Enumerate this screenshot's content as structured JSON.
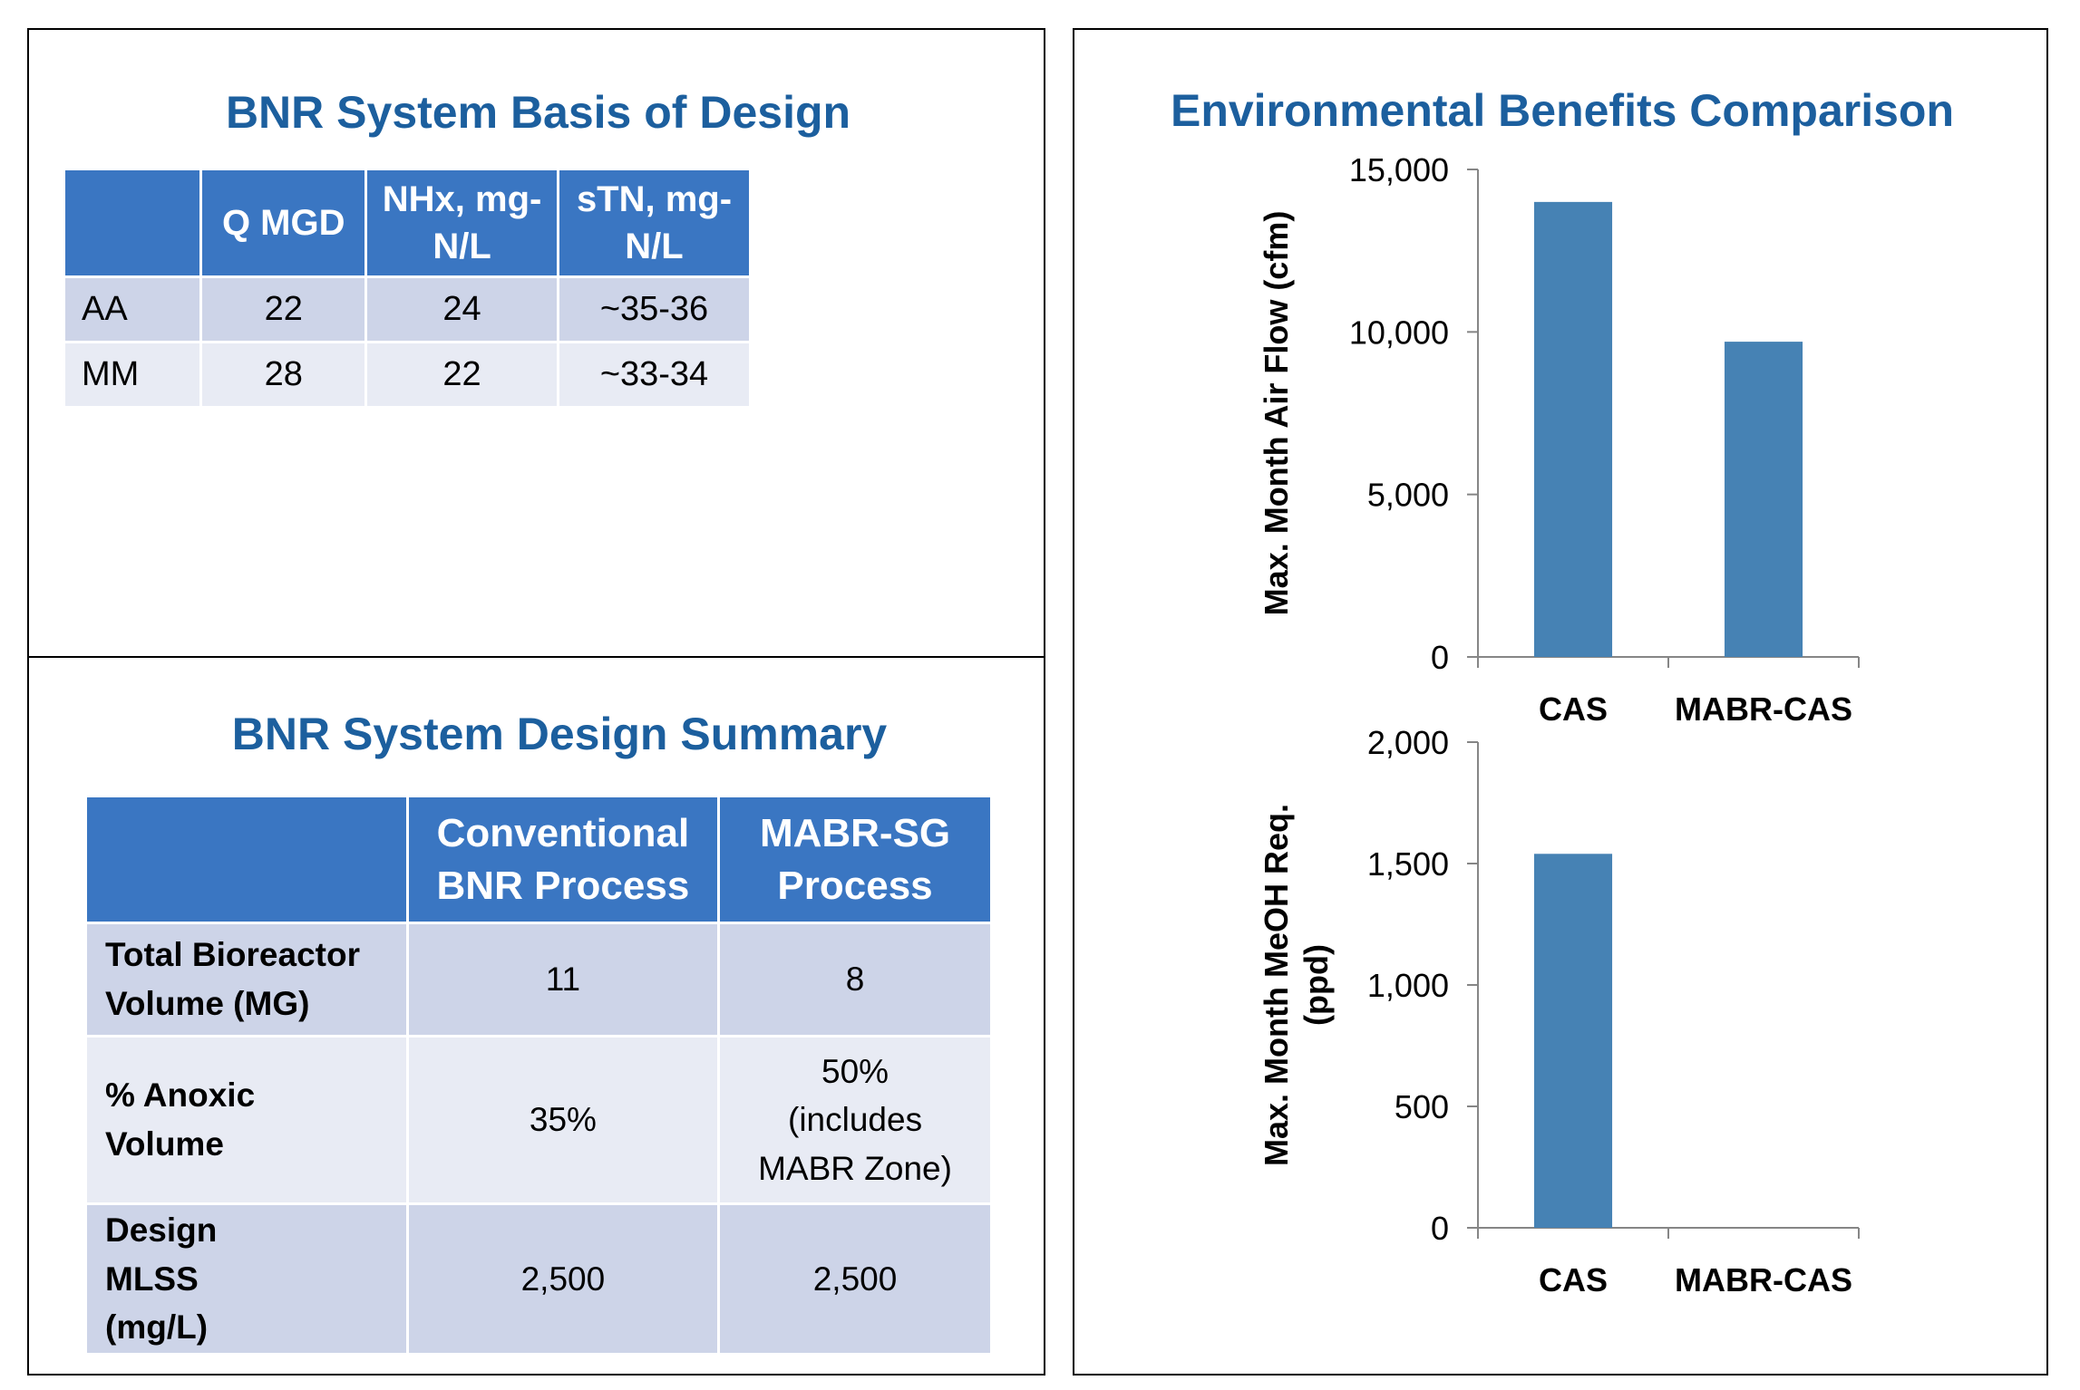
{
  "basis_panel": {
    "title": "BNR System Basis of Design",
    "headers": [
      "",
      "Q MGD",
      "NHx, mg-N/L",
      "sTN, mg-N/L"
    ],
    "rows": [
      {
        "label": "AA",
        "q": "22",
        "nhx": "24",
        "stn": "~35-36"
      },
      {
        "label": "MM",
        "q": "28",
        "nhx": "22",
        "stn": "~33-34"
      }
    ]
  },
  "summary_panel": {
    "title": "BNR System Design Summary",
    "headers": [
      "",
      "Conventional BNR Process",
      "MABR-SG Process"
    ],
    "rows": [
      {
        "label": "Total Bioreactor Volume (MG)",
        "conventional": "11",
        "mabr": "8"
      },
      {
        "label": "% Anoxic Volume",
        "conventional": "35%",
        "mabr": "50% (includes MABR Zone)"
      },
      {
        "label": "Design MLSS (mg/L)",
        "conventional": "2,500",
        "mabr": "2,500"
      }
    ]
  },
  "env_panel": {
    "title": "Environmental Benefits Comparison"
  },
  "colors": {
    "bar": "#4682b4",
    "title": "#1c5f9e",
    "header": "#3a76c2"
  },
  "chart_data": [
    {
      "type": "bar",
      "title": "",
      "categories": [
        "CAS",
        "MABR-CAS"
      ],
      "values": [
        14000,
        9700
      ],
      "ylabel": "Max. Month Air Flow (cfm)",
      "xlabel": "",
      "ylim": [
        0,
        15000
      ],
      "yticks": [
        0,
        5000,
        10000,
        15000
      ],
      "ytick_labels": [
        "0",
        "5,000",
        "10,000",
        "15,000"
      ],
      "grid": false
    },
    {
      "type": "bar",
      "title": "",
      "categories": [
        "CAS",
        "MABR-CAS"
      ],
      "values": [
        1540,
        0
      ],
      "ylabel": "Max. Month MeOH Req. (ppd)",
      "xlabel": "",
      "ylim": [
        0,
        2000
      ],
      "yticks": [
        0,
        500,
        1000,
        1500,
        2000
      ],
      "ytick_labels": [
        "0",
        "500",
        "1,000",
        "1,500",
        "2,000"
      ],
      "grid": false
    }
  ]
}
